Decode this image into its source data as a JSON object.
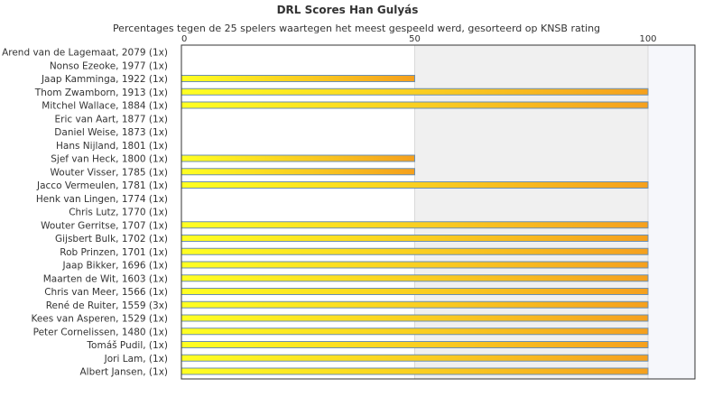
{
  "chart_data": {
    "type": "bar",
    "orientation": "horizontal",
    "title": "DRL Scores Han Gulyás",
    "subtitle": "Percentages tegen de 25 spelers waartegen het meest gespeeld werd, gesorteerd op KNSB rating",
    "xlim": [
      0,
      110
    ],
    "xticks": [
      0,
      50,
      100
    ],
    "grid": true,
    "legend": "none",
    "colors": {
      "bar_start": "#ffff22",
      "bar_end": "#f5a01e",
      "bar_edge": "#6b8fb3",
      "band": "#f0f0f0",
      "band_right": "#f6f7fb",
      "gridline": "#d9d9d9",
      "axis": "#333333",
      "text": "#333333"
    },
    "categories": [
      "Arend van de Lagemaat, 2079 (1x)",
      "Nonso Ezeoke, 1977 (1x)",
      "Jaap Kamminga, 1922 (1x)",
      "Thom Zwamborn, 1913 (1x)",
      "Mitchel Wallace, 1884 (1x)",
      "Eric van Aart, 1877 (1x)",
      "Daniel Weise, 1873 (1x)",
      "Hans Nijland, 1801 (1x)",
      "Sjef van Heck, 1800 (1x)",
      "Wouter Visser, 1785 (1x)",
      "Jacco Vermeulen, 1781 (1x)",
      "Henk van Lingen, 1774 (1x)",
      "Chris Lutz, 1770 (1x)",
      "Wouter Gerritse, 1707 (1x)",
      "Gijsbert Bulk, 1702 (1x)",
      "Rob Prinzen, 1701 (1x)",
      "Jaap Bikker, 1696 (1x)",
      "Maarten de Wit, 1603 (1x)",
      "Chris van Meer, 1566 (1x)",
      "René de Ruiter, 1559 (3x)",
      "Kees van Asperen, 1529 (1x)",
      "Peter Cornelissen, 1480 (1x)",
      "Tomáš Pudil,  (1x)",
      "Jori Lam,  (1x)",
      "Albert Jansen,  (1x)"
    ],
    "values": [
      0,
      0,
      50,
      100,
      100,
      0,
      0,
      0,
      50,
      50,
      100,
      0,
      0,
      100,
      100,
      100,
      100,
      100,
      100,
      100,
      100,
      100,
      100,
      100,
      100
    ]
  }
}
